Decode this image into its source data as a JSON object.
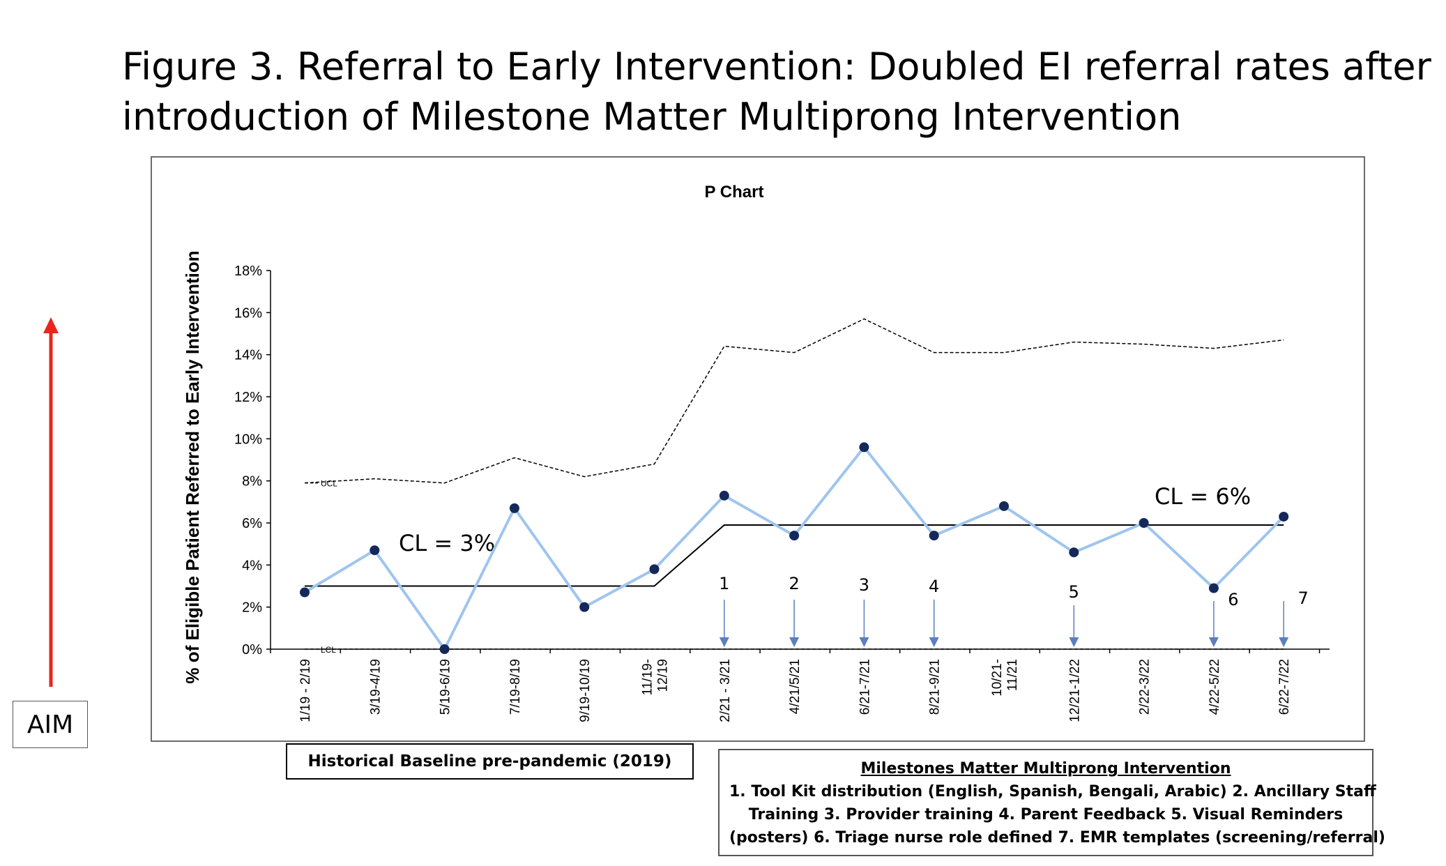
{
  "figure": {
    "title_line1": "Figure 3. Referral to Early Intervention: Doubled EI referral rates after",
    "title_line2": "introduction of Milestone Matter Multiprong Intervention"
  },
  "aim": {
    "label": "AIM",
    "arrow_color": "#e8261c"
  },
  "colors": {
    "series": "#9fc5ef",
    "marker": "#14285a",
    "arrow": "#5b7fc0",
    "limit_line": "#000000"
  },
  "chart_data": {
    "type": "line",
    "title": "P Chart",
    "ylabel": "% of Eligible Patient Referred to Early Intervention",
    "xlabel": "",
    "ylim": [
      0,
      0.18
    ],
    "yticks": [
      0,
      0.02,
      0.04,
      0.06,
      0.08,
      0.1,
      0.12,
      0.14,
      0.16,
      0.18
    ],
    "ytick_labels": [
      "0%",
      "2%",
      "4%",
      "6%",
      "8%",
      "10%",
      "12%",
      "14%",
      "16%",
      "18%"
    ],
    "categories": [
      "1/19 - 2/19",
      "3/19-4/19",
      "5/19-6/19",
      "7/19-8/19",
      "9/19-10/19",
      "11/19-\n12/19",
      "2/21 - 3/21",
      "4/21/5/21",
      "6/21-7/21",
      "8/21-9/21",
      "10/21-\n11/21",
      "12/21-1/22",
      "2/22-3/22",
      "4/22-5/22",
      "6/22-7/22"
    ],
    "values": [
      0.027,
      0.047,
      0.0,
      0.067,
      0.02,
      0.038,
      0.073,
      0.054,
      0.096,
      0.054,
      0.068,
      0.046,
      0.06,
      0.029,
      0.063
    ],
    "ucl": [
      0.079,
      0.081,
      0.079,
      0.091,
      0.082,
      0.088,
      0.144,
      0.141,
      0.157,
      0.141,
      0.141,
      0.146,
      0.145,
      0.143,
      0.147
    ],
    "ucl_label": "UCL",
    "lcl": [
      0,
      0,
      0,
      0,
      0,
      0,
      0,
      0,
      0,
      0,
      0,
      0,
      0,
      0,
      0
    ],
    "lcl_label": "LCL",
    "center_line": [
      {
        "from_index": 0,
        "to_index": 5,
        "value": 0.03,
        "label": "CL = 3%"
      },
      {
        "from_index": 6,
        "to_index": 14,
        "value": 0.059,
        "label": "CL = 6%"
      }
    ],
    "annotations": [
      {
        "label": "1",
        "index": 6
      },
      {
        "label": "2",
        "index": 7
      },
      {
        "label": "3",
        "index": 8
      },
      {
        "label": "4",
        "index": 9
      },
      {
        "label": "5",
        "index": 11
      },
      {
        "label": "6",
        "index": 13
      },
      {
        "label": "7",
        "index": 14
      }
    ],
    "grid": false,
    "legend": "none"
  },
  "baseline_box": {
    "label": "Historical Baseline pre-pandemic (2019)"
  },
  "intervention_box": {
    "title": "Milestones Matter Multiprong Intervention",
    "line1": "1. Tool Kit distribution (English, Spanish, Bengali, Arabic) 2. Ancillary Staff",
    "line2": "Training 3. Provider training  4. Parent Feedback 5. Visual Reminders",
    "line3": "(posters) 6. Triage nurse role defined 7. EMR templates (screening/referral)"
  }
}
